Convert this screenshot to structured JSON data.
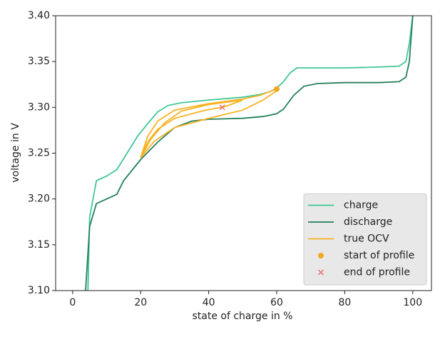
{
  "chart_data": {
    "type": "line",
    "xlabel": "state of charge in %",
    "ylabel": "voltage in V",
    "xlim": [
      -5,
      105.5
    ],
    "ylim": [
      3.1,
      3.4
    ],
    "xticks": [
      0,
      20,
      40,
      60,
      80,
      100
    ],
    "yticks": [
      {
        "value": 3.1,
        "label": "3.10"
      },
      3.15,
      {
        "value": 3.2,
        "label": "3.20"
      },
      3.25,
      {
        "value": 3.3,
        "label": "3.30"
      },
      3.35,
      {
        "value": 3.4,
        "label": "3.40"
      }
    ],
    "grid": false,
    "legend": "lower right",
    "series": [
      {
        "name": "charge",
        "color": "#3fc795",
        "marker": "line",
        "x": [
          4.5,
          5,
          7,
          10,
          13,
          16,
          19,
          22,
          25,
          28,
          32,
          40,
          50,
          55,
          58,
          60,
          62,
          64,
          66,
          70,
          80,
          90,
          96,
          98,
          99,
          100
        ],
        "values": [
          3.1,
          3.18,
          3.22,
          3.225,
          3.232,
          3.25,
          3.268,
          3.282,
          3.295,
          3.302,
          3.305,
          3.308,
          3.311,
          3.314,
          3.317,
          3.321,
          3.328,
          3.338,
          3.343,
          3.343,
          3.343,
          3.344,
          3.345,
          3.35,
          3.37,
          3.4
        ]
      },
      {
        "name": "discharge",
        "color": "#24805a",
        "marker": "line",
        "x": [
          3.8,
          5,
          7,
          10,
          13,
          15,
          20,
          25,
          30,
          35,
          40,
          50,
          56,
          60,
          62,
          65,
          68,
          72,
          80,
          90,
          96,
          98,
          99,
          100
        ],
        "values": [
          3.1,
          3.17,
          3.195,
          3.2,
          3.205,
          3.22,
          3.243,
          3.262,
          3.278,
          3.285,
          3.287,
          3.288,
          3.29,
          3.293,
          3.298,
          3.313,
          3.323,
          3.326,
          3.327,
          3.327,
          3.328,
          3.333,
          3.35,
          3.4
        ]
      },
      {
        "name": "true OCV",
        "color": "#f7b224",
        "marker": "line",
        "x": [
          60,
          55,
          50,
          40,
          30,
          25,
          22,
          20,
          23,
          27,
          32,
          40,
          46,
          50,
          45,
          38,
          30,
          25,
          22,
          20,
          24,
          30,
          40,
          50,
          56,
          60
        ],
        "values": [
          3.32,
          3.313,
          3.309,
          3.304,
          3.297,
          3.285,
          3.268,
          3.245,
          3.265,
          3.283,
          3.296,
          3.303,
          3.306,
          3.308,
          3.301,
          3.296,
          3.288,
          3.276,
          3.262,
          3.245,
          3.263,
          3.278,
          3.288,
          3.297,
          3.308,
          3.318
        ]
      },
      {
        "name": "start of profile",
        "color": "#f5a623",
        "marker": "o",
        "x": [
          60
        ],
        "values": [
          3.32
        ]
      },
      {
        "name": "end of profile",
        "color": "#e8726e",
        "marker": "x",
        "x": [
          44
        ],
        "values": [
          3.3
        ]
      }
    ]
  }
}
